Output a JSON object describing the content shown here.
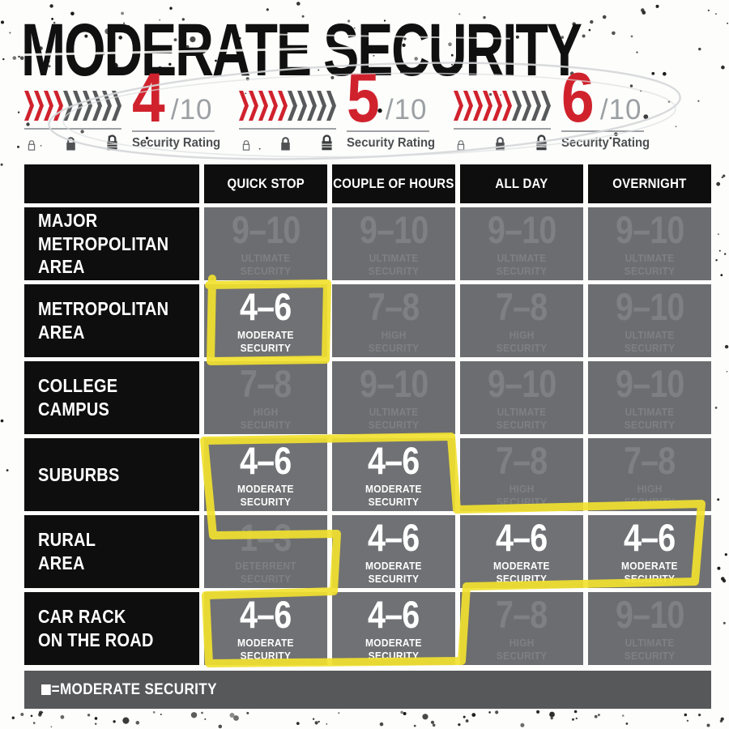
{
  "title": "MODERATE SECURITY",
  "colors": {
    "red": "#d0222d",
    "dark_gray": "#58595b",
    "line_gray": "#9fa2a5",
    "cell_gray": "#6c6d70",
    "muted_text": "#7e8083",
    "black": "#0e0e0e",
    "yellow_marker": "#f1e12f",
    "footer_gray": "#57585a"
  },
  "ratings": [
    {
      "value": "4",
      "denominator": "/10",
      "caption": "Security Rating",
      "chevrons_red": 4,
      "chevrons_total": 10
    },
    {
      "value": "5",
      "denominator": "/10",
      "caption": "Security Rating",
      "chevrons_red": 5,
      "chevrons_total": 10
    },
    {
      "value": "6",
      "denominator": "/10",
      "caption": "Security Rating",
      "chevrons_red": 6,
      "chevrons_total": 10
    }
  ],
  "table": {
    "columns": [
      "",
      "QUICK STOP",
      "COUPLE OF HOURS",
      "ALL DAY",
      "OVERNIGHT"
    ],
    "rows": [
      {
        "label": "MAJOR\nMETROPOLITAN\nAREA",
        "cells": [
          {
            "range": "9–10",
            "level": "ULTIMATE\nSECURITY",
            "highlight": false
          },
          {
            "range": "9–10",
            "level": "ULTIMATE\nSECURITY",
            "highlight": false
          },
          {
            "range": "9–10",
            "level": "ULTIMATE\nSECURITY",
            "highlight": false
          },
          {
            "range": "9–10",
            "level": "ULTIMATE\nSECURITY",
            "highlight": false
          }
        ]
      },
      {
        "label": "METROPOLITAN\nAREA",
        "cells": [
          {
            "range": "4–6",
            "level": "MODERATE\nSECURITY",
            "highlight": true
          },
          {
            "range": "7–8",
            "level": "HIGH\nSECURITY",
            "highlight": false
          },
          {
            "range": "7–8",
            "level": "HIGH\nSECURITY",
            "highlight": false
          },
          {
            "range": "9–10",
            "level": "ULTIMATE\nSECURITY",
            "highlight": false
          }
        ]
      },
      {
        "label": "COLLEGE\nCAMPUS",
        "cells": [
          {
            "range": "7–8",
            "level": "HIGH\nSECURITY",
            "highlight": false
          },
          {
            "range": "9–10",
            "level": "ULTIMATE\nSECURITY",
            "highlight": false
          },
          {
            "range": "9–10",
            "level": "ULTIMATE\nSECURITY",
            "highlight": false
          },
          {
            "range": "9–10",
            "level": "ULTIMATE\nSECURITY",
            "highlight": false
          }
        ]
      },
      {
        "label": "SUBURBS",
        "cells": [
          {
            "range": "4–6",
            "level": "MODERATE\nSECURITY",
            "highlight": true
          },
          {
            "range": "4–6",
            "level": "MODERATE\nSECURITY",
            "highlight": true
          },
          {
            "range": "7–8",
            "level": "HIGH\nSECURITY",
            "highlight": false
          },
          {
            "range": "7–8",
            "level": "HIGH\nSECURITY",
            "highlight": false
          }
        ]
      },
      {
        "label": "RURAL\nAREA",
        "cells": [
          {
            "range": "1–3",
            "level": "DETERRENT\nSECURITY",
            "highlight": false
          },
          {
            "range": "4–6",
            "level": "MODERATE\nSECURITY",
            "highlight": true
          },
          {
            "range": "4–6",
            "level": "MODERATE\nSECURITY",
            "highlight": true
          },
          {
            "range": "4–6",
            "level": "MODERATE\nSECURITY",
            "highlight": true
          }
        ]
      },
      {
        "label": "CAR RACK\nON THE ROAD",
        "cells": [
          {
            "range": "4–6",
            "level": "MODERATE\nSECURITY",
            "highlight": true
          },
          {
            "range": "4–6",
            "level": "MODERATE\nSECURITY",
            "highlight": true
          },
          {
            "range": "7–8",
            "level": "HIGH\nSECURITY",
            "highlight": false
          },
          {
            "range": "9–10",
            "level": "ULTIMATE\nSECURITY",
            "highlight": false
          }
        ]
      }
    ]
  },
  "legend": {
    "swatch": "■",
    "text": "=MODERATE SECURITY"
  },
  "chart_data": {
    "type": "table",
    "title": "MODERATE SECURITY",
    "ratings": [
      "4/10",
      "5/10",
      "6/10"
    ],
    "rating_caption": "Security Rating",
    "columns": [
      "QUICK STOP",
      "COUPLE OF HOURS",
      "ALL DAY",
      "OVERNIGHT"
    ],
    "rows": [
      "MAJOR METROPOLITAN AREA",
      "METROPOLITAN AREA",
      "COLLEGE CAMPUS",
      "SUBURBS",
      "RURAL AREA",
      "CAR RACK ON THE ROAD"
    ],
    "values": [
      [
        "9-10 ULTIMATE SECURITY",
        "9-10 ULTIMATE SECURITY",
        "9-10 ULTIMATE SECURITY",
        "9-10 ULTIMATE SECURITY"
      ],
      [
        "4-6 MODERATE SECURITY",
        "7-8 HIGH SECURITY",
        "7-8 HIGH SECURITY",
        "9-10 ULTIMATE SECURITY"
      ],
      [
        "7-8 HIGH SECURITY",
        "9-10 ULTIMATE SECURITY",
        "9-10 ULTIMATE SECURITY",
        "9-10 ULTIMATE SECURITY"
      ],
      [
        "4-6 MODERATE SECURITY",
        "4-6 MODERATE SECURITY",
        "7-8 HIGH SECURITY",
        "7-8 HIGH SECURITY"
      ],
      [
        "1-3 DETERRENT SECURITY",
        "4-6 MODERATE SECURITY",
        "4-6 MODERATE SECURITY",
        "4-6 MODERATE SECURITY"
      ],
      [
        "4-6 MODERATE SECURITY",
        "4-6 MODERATE SECURITY",
        "7-8 HIGH SECURITY",
        "9-10 ULTIMATE SECURITY"
      ]
    ],
    "highlighted_value": "4-6 MODERATE SECURITY",
    "highlighted_cells": [
      [
        1,
        0
      ],
      [
        3,
        0
      ],
      [
        3,
        1
      ],
      [
        4,
        1
      ],
      [
        4,
        2
      ],
      [
        4,
        3
      ],
      [
        5,
        0
      ],
      [
        5,
        1
      ]
    ],
    "legend": "■ = MODERATE SECURITY"
  }
}
